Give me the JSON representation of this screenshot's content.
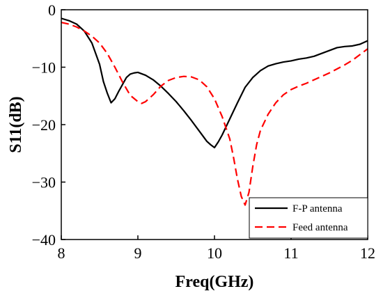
{
  "chart_data": {
    "type": "line",
    "xlabel": "Freq(GHz)",
    "ylabel": "S11(dB)",
    "xlim": [
      8,
      12
    ],
    "ylim": [
      -40,
      0
    ],
    "xticks": [
      8,
      9,
      10,
      11,
      12
    ],
    "yticks": [
      0,
      -10,
      -20,
      -30,
      -40
    ],
    "x_tick_labels": [
      "8",
      "9",
      "10",
      "11",
      "12"
    ],
    "y_tick_labels": [
      "0",
      "−10",
      "−20",
      "−30",
      "−40"
    ],
    "grid": false,
    "legend_position": "bottom-right",
    "series": [
      {
        "name": "F-P antenna",
        "color": "#000000",
        "style": "solid",
        "x": [
          8.0,
          8.1,
          8.2,
          8.3,
          8.4,
          8.5,
          8.55,
          8.6,
          8.65,
          8.7,
          8.75,
          8.8,
          8.85,
          8.9,
          8.95,
          9.0,
          9.1,
          9.2,
          9.3,
          9.4,
          9.5,
          9.6,
          9.7,
          9.8,
          9.9,
          9.95,
          10.0,
          10.05,
          10.1,
          10.2,
          10.3,
          10.4,
          10.5,
          10.6,
          10.7,
          10.8,
          10.9,
          11.0,
          11.1,
          11.2,
          11.3,
          11.4,
          11.5,
          11.6,
          11.7,
          11.8,
          11.9,
          12.0
        ],
        "y": [
          -1.5,
          -1.9,
          -2.5,
          -3.7,
          -5.8,
          -9.5,
          -12.5,
          -14.5,
          -16.2,
          -15.5,
          -14.2,
          -13.0,
          -11.8,
          -11.2,
          -11.0,
          -10.9,
          -11.4,
          -12.2,
          -13.3,
          -14.6,
          -16.0,
          -17.6,
          -19.3,
          -21.1,
          -22.9,
          -23.5,
          -24.0,
          -23.0,
          -21.8,
          -19.0,
          -16.2,
          -13.5,
          -11.8,
          -10.6,
          -9.8,
          -9.4,
          -9.1,
          -8.9,
          -8.6,
          -8.4,
          -8.1,
          -7.6,
          -7.1,
          -6.6,
          -6.4,
          -6.3,
          -6.0,
          -5.4
        ]
      },
      {
        "name": "Feed antenna",
        "color": "#ff0000",
        "style": "dashed",
        "x": [
          8.0,
          8.1,
          8.2,
          8.3,
          8.4,
          8.5,
          8.6,
          8.7,
          8.8,
          8.9,
          9.0,
          9.05,
          9.1,
          9.2,
          9.3,
          9.4,
          9.5,
          9.6,
          9.7,
          9.8,
          9.9,
          10.0,
          10.1,
          10.2,
          10.25,
          10.3,
          10.35,
          10.4,
          10.45,
          10.5,
          10.55,
          10.6,
          10.7,
          10.8,
          10.9,
          11.0,
          11.1,
          11.2,
          11.3,
          11.4,
          11.5,
          11.6,
          11.7,
          11.8,
          11.9,
          12.0
        ],
        "y": [
          -2.2,
          -2.5,
          -3.0,
          -3.7,
          -4.6,
          -5.8,
          -7.6,
          -10.0,
          -12.6,
          -14.9,
          -16.0,
          -16.3,
          -16.0,
          -14.8,
          -13.3,
          -12.3,
          -11.8,
          -11.6,
          -11.7,
          -12.2,
          -13.4,
          -15.5,
          -18.6,
          -22.5,
          -25.8,
          -29.5,
          -32.5,
          -34.0,
          -31.8,
          -27.3,
          -23.5,
          -21.0,
          -18.2,
          -16.2,
          -14.8,
          -13.9,
          -13.3,
          -12.8,
          -12.2,
          -11.6,
          -11.0,
          -10.3,
          -9.6,
          -8.8,
          -7.8,
          -6.8
        ]
      }
    ]
  }
}
